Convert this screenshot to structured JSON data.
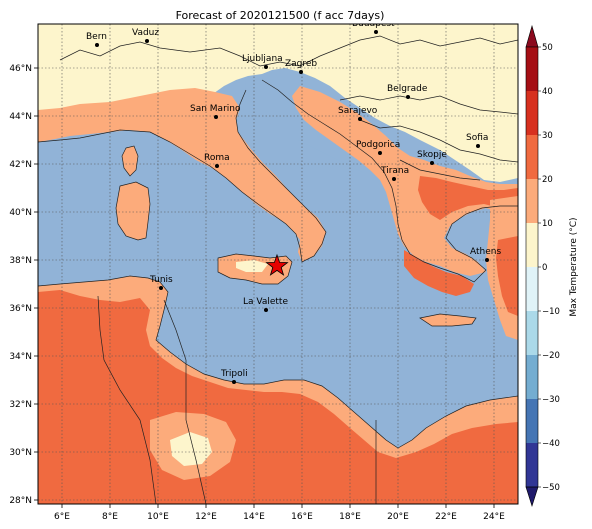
{
  "title": "Forecast of 2020121500 (f acc 7days)",
  "colorbar": {
    "label": "Max Temperature (°C)",
    "ticks": [
      "50",
      "40",
      "30",
      "20",
      "10",
      "0",
      "−10",
      "−20",
      "−30",
      "−40",
      "−50"
    ],
    "colors": [
      "#8b0a1e",
      "#b5192b",
      "#d7301f",
      "#f06a40",
      "#fcab7b",
      "#fdf3c8",
      "#e0f3f8",
      "#abd9e9",
      "#74add1",
      "#4575b4",
      "#313695",
      "#1f1a6b"
    ]
  },
  "axes": {
    "x_ticks": [
      "6°E",
      "8°E",
      "10°E",
      "12°E",
      "14°E",
      "16°E",
      "18°E",
      "20°E",
      "22°E",
      "24°E"
    ],
    "y_ticks": [
      "46°N",
      "44°N",
      "42°N",
      "40°N",
      "38°N",
      "36°N",
      "34°N",
      "32°N",
      "30°N",
      "28°N"
    ]
  },
  "colors": {
    "sea": "#91b3d7",
    "warm": "#fcab7b",
    "hot": "#f06a40",
    "mild": "#fdf5cc",
    "border": "#222222",
    "marker": "#e60000"
  },
  "cities": [
    {
      "name": "Bern"
    },
    {
      "name": "Vaduz"
    },
    {
      "name": "Budapest"
    },
    {
      "name": "Ljubljana"
    },
    {
      "name": "Zagreb"
    },
    {
      "name": "Belgrade"
    },
    {
      "name": "San Marino"
    },
    {
      "name": "Sarajevo"
    },
    {
      "name": "Sofia"
    },
    {
      "name": "Podgorica"
    },
    {
      "name": "Skopje"
    },
    {
      "name": "Roma"
    },
    {
      "name": "Tirana"
    },
    {
      "name": "Athens"
    },
    {
      "name": "Tunis"
    },
    {
      "name": "La Valette"
    },
    {
      "name": "Tripoli"
    }
  ],
  "marker": {
    "name": "forecast-point-star-icon"
  }
}
